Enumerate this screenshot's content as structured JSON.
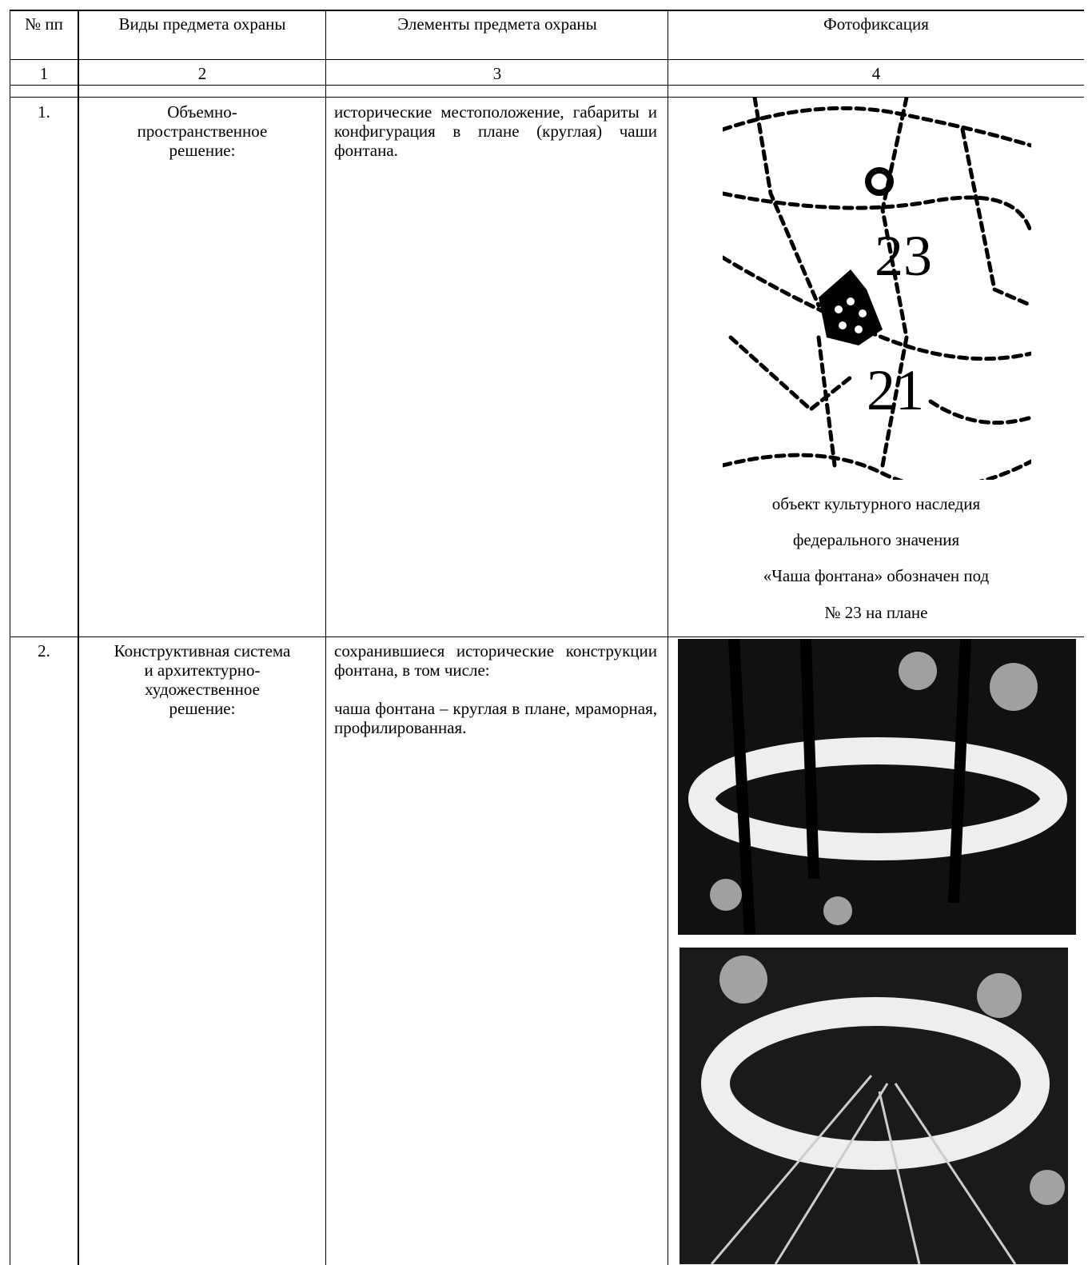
{
  "table": {
    "header": [
      "№ пп",
      "Виды предмета охраны",
      "Элементы предмета охраны",
      "Фотофиксация"
    ],
    "column_numbers": [
      "1",
      "2",
      "3",
      "4"
    ],
    "rows": [
      {
        "number": "1.",
        "kind": [
          "Объемно-",
          "пространственное",
          "решение:"
        ],
        "elements": [
          "исторические местоположение, габариты и конфигурация в плане (круглая) чаши фонтана."
        ],
        "photo": {
          "map_labels": [
            "23",
            "21"
          ],
          "caption": [
            "объект культурного наследия",
            "федерального значения",
            "«Чаша фонтана» обозначен под",
            "№ 23 на плане"
          ]
        }
      },
      {
        "number": "2.",
        "kind": [
          "Конструктивная система",
          "и архитектурно-",
          "художественное",
          "решение:"
        ],
        "elements": [
          "сохранившиеся исторические конструкции фонтана, в том числе:",
          "чаша фонтана – круглая в плане, мраморная, профилированная."
        ]
      }
    ]
  }
}
